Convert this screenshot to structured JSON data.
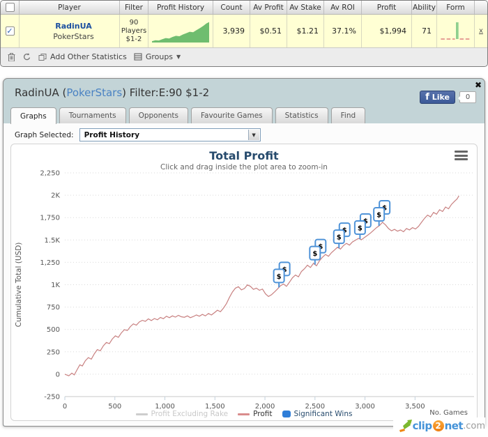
{
  "table": {
    "columns": [
      "",
      "Player",
      "Filter",
      "Profit History",
      "Count",
      "Av Profit",
      "Av Stake",
      "Av ROI",
      "Profit",
      "Ability",
      "Form",
      ""
    ],
    "row": {
      "selected": true,
      "player_name": "RadinUA",
      "site": "PokerStars",
      "filter_lines": [
        "90",
        "Players",
        "$1-2"
      ],
      "count": "3,939",
      "av_profit": "$0.51",
      "av_stake": "$1.21",
      "av_roi": "37.1%",
      "profit": "$1,994",
      "ability": "71",
      "remove_label": "x",
      "profit_history_spark": {
        "color": "#6fbd6f",
        "points": [
          [
            0,
            0.06
          ],
          [
            0.06,
            0.1
          ],
          [
            0.12,
            0.09
          ],
          [
            0.18,
            0.15
          ],
          [
            0.24,
            0.2
          ],
          [
            0.3,
            0.18
          ],
          [
            0.36,
            0.25
          ],
          [
            0.42,
            0.3
          ],
          [
            0.48,
            0.28
          ],
          [
            0.54,
            0.36
          ],
          [
            0.6,
            0.42
          ],
          [
            0.66,
            0.48
          ],
          [
            0.72,
            0.46
          ],
          [
            0.78,
            0.56
          ],
          [
            0.84,
            0.65
          ],
          [
            0.9,
            0.75
          ],
          [
            0.95,
            0.85
          ],
          [
            1,
            0.92
          ]
        ]
      },
      "form_spark": {
        "dash_color": "#dd8080",
        "bar_color": "#8fd08f",
        "dashes": [
          [
            0.03,
            0.15
          ],
          [
            0.21,
            0.33
          ],
          [
            0.39,
            0.47
          ],
          [
            0.62,
            0.74
          ],
          [
            0.8,
            0.92
          ]
        ],
        "bar": [
          0.5,
          0.58
        ]
      }
    },
    "toolbar": {
      "add_stats_label": "Add Other Statistics",
      "groups_label": "Groups"
    }
  },
  "window": {
    "title_prefix": "RadinUA (",
    "title_site": "PokerStars",
    "title_suffix": ") Filter:E:90 $1-2",
    "like_label": "Like",
    "like_f": "f",
    "like_count": "0",
    "close_glyph": "✖",
    "tabs": [
      "Graphs",
      "Tournaments",
      "Opponents",
      "Favourite Games",
      "Statistics",
      "Find"
    ],
    "active_tab": "Graphs",
    "graph_selected_label": "Graph Selected:",
    "graph_selected_value": "Profit History"
  },
  "chart_data": {
    "type": "line",
    "title": "Total Profit",
    "subtitle": "Click and drag inside the plot area to zoom-in",
    "ylabel": "Cumulative Total (USD)",
    "xlabel": "No. Games",
    "ylim": [
      -250,
      2250
    ],
    "xlim": [
      0,
      4090
    ],
    "grid": "dotted-horizontal",
    "yticks": [
      {
        "value": -250,
        "label": "-250"
      },
      {
        "value": 0,
        "label": "0"
      },
      {
        "value": 250,
        "label": "250"
      },
      {
        "value": 500,
        "label": "500"
      },
      {
        "value": 750,
        "label": "750"
      },
      {
        "value": 1000,
        "label": "1K"
      },
      {
        "value": 1250,
        "label": "1,250"
      },
      {
        "value": 1500,
        "label": "1.5K"
      },
      {
        "value": 1750,
        "label": "1,750"
      },
      {
        "value": 2000,
        "label": "2K"
      },
      {
        "value": 2250,
        "label": "2,250"
      }
    ],
    "xticks": [
      {
        "value": 0,
        "label": "0"
      },
      {
        "value": 500,
        "label": "500"
      },
      {
        "value": 1000,
        "label": "1,000"
      },
      {
        "value": 1500,
        "label": "1,500"
      },
      {
        "value": 2000,
        "label": "2,000"
      },
      {
        "value": 2500,
        "label": "2,500"
      },
      {
        "value": 3000,
        "label": "3,000"
      },
      {
        "value": 3500,
        "label": "3,500"
      }
    ],
    "legend": [
      {
        "label": "Profit Excluding Rake",
        "type": "line",
        "color": "#cdcdcd",
        "text_color": "#c8c8c8",
        "visible": false
      },
      {
        "label": "Profit",
        "type": "line",
        "color": "#d98c8c",
        "text_color": "#333333",
        "visible": true
      },
      {
        "label": "Significant Wins",
        "type": "square",
        "color": "#2f7ed8",
        "text_color": "#274b6d",
        "visible": true
      }
    ],
    "series": [
      {
        "name": "Profit",
        "color": "#c88080",
        "points": [
          [
            0,
            0
          ],
          [
            40,
            -18
          ],
          [
            70,
            12
          ],
          [
            95,
            -8
          ],
          [
            120,
            45
          ],
          [
            150,
            105
          ],
          [
            175,
            92
          ],
          [
            205,
            150
          ],
          [
            235,
            185
          ],
          [
            265,
            168
          ],
          [
            295,
            228
          ],
          [
            325,
            275
          ],
          [
            355,
            262
          ],
          [
            385,
            318
          ],
          [
            415,
            355
          ],
          [
            445,
            342
          ],
          [
            475,
            395
          ],
          [
            505,
            428
          ],
          [
            535,
            412
          ],
          [
            565,
            462
          ],
          [
            595,
            498
          ],
          [
            625,
            488
          ],
          [
            655,
            532
          ],
          [
            685,
            562
          ],
          [
            715,
            548
          ],
          [
            745,
            585
          ],
          [
            775,
            602
          ],
          [
            805,
            590
          ],
          [
            835,
            618
          ],
          [
            865,
            600
          ],
          [
            895,
            622
          ],
          [
            925,
            608
          ],
          [
            955,
            635
          ],
          [
            985,
            620
          ],
          [
            1015,
            648
          ],
          [
            1045,
            632
          ],
          [
            1075,
            652
          ],
          [
            1105,
            638
          ],
          [
            1135,
            658
          ],
          [
            1165,
            642
          ],
          [
            1195,
            636
          ],
          [
            1225,
            652
          ],
          [
            1255,
            632
          ],
          [
            1285,
            645
          ],
          [
            1315,
            662
          ],
          [
            1345,
            648
          ],
          [
            1375,
            668
          ],
          [
            1405,
            652
          ],
          [
            1435,
            678
          ],
          [
            1465,
            662
          ],
          [
            1495,
            688
          ],
          [
            1525,
            715
          ],
          [
            1555,
            698
          ],
          [
            1585,
            738
          ],
          [
            1615,
            788
          ],
          [
            1645,
            858
          ],
          [
            1675,
            918
          ],
          [
            1705,
            962
          ],
          [
            1735,
            978
          ],
          [
            1765,
            942
          ],
          [
            1795,
            958
          ],
          [
            1825,
            998
          ],
          [
            1855,
            982
          ],
          [
            1885,
            948
          ],
          [
            1915,
            962
          ],
          [
            1945,
            938
          ],
          [
            1975,
            952
          ],
          [
            2005,
            898
          ],
          [
            2035,
            868
          ],
          [
            2065,
            888
          ],
          [
            2095,
            918
          ],
          [
            2125,
            952
          ],
          [
            2155,
            988
          ],
          [
            2185,
            1008
          ],
          [
            2215,
            982
          ],
          [
            2245,
            1028
          ],
          [
            2275,
            1078
          ],
          [
            2305,
            1108
          ],
          [
            2335,
            1088
          ],
          [
            2365,
            1148
          ],
          [
            2395,
            1178
          ],
          [
            2425,
            1218
          ],
          [
            2455,
            1192
          ],
          [
            2485,
            1238
          ],
          [
            2515,
            1212
          ],
          [
            2545,
            1268
          ],
          [
            2575,
            1308
          ],
          [
            2605,
            1338
          ],
          [
            2635,
            1318
          ],
          [
            2665,
            1358
          ],
          [
            2695,
            1388
          ],
          [
            2725,
            1418
          ],
          [
            2755,
            1398
          ],
          [
            2785,
            1438
          ],
          [
            2815,
            1462
          ],
          [
            2845,
            1442
          ],
          [
            2875,
            1478
          ],
          [
            2905,
            1498
          ],
          [
            2935,
            1518
          ],
          [
            2965,
            1502
          ],
          [
            2995,
            1528
          ],
          [
            3025,
            1552
          ],
          [
            3055,
            1578
          ],
          [
            3085,
            1608
          ],
          [
            3115,
            1638
          ],
          [
            3145,
            1662
          ],
          [
            3175,
            1698
          ],
          [
            3205,
            1668
          ],
          [
            3235,
            1628
          ],
          [
            3265,
            1602
          ],
          [
            3295,
            1618
          ],
          [
            3325,
            1598
          ],
          [
            3355,
            1612
          ],
          [
            3385,
            1592
          ],
          [
            3415,
            1628
          ],
          [
            3445,
            1612
          ],
          [
            3475,
            1638
          ],
          [
            3505,
            1622
          ],
          [
            3535,
            1652
          ],
          [
            3565,
            1698
          ],
          [
            3595,
            1742
          ],
          [
            3625,
            1778
          ],
          [
            3655,
            1758
          ],
          [
            3685,
            1808
          ],
          [
            3715,
            1788
          ],
          [
            3745,
            1838
          ],
          [
            3775,
            1818
          ],
          [
            3805,
            1868
          ],
          [
            3835,
            1848
          ],
          [
            3865,
            1898
          ],
          [
            3895,
            1932
          ],
          [
            3920,
            1958
          ],
          [
            3939,
            1994
          ]
        ]
      },
      {
        "name": "Significant Wins",
        "marker_symbol": "$",
        "marker_border": "#4f93d8",
        "marker_games": [
          2140,
          2500,
          2740,
          2950,
          3140
        ]
      }
    ]
  },
  "branding": {
    "clip": "clip",
    "two": "2",
    "net": "net",
    "dotcom": ".com"
  }
}
